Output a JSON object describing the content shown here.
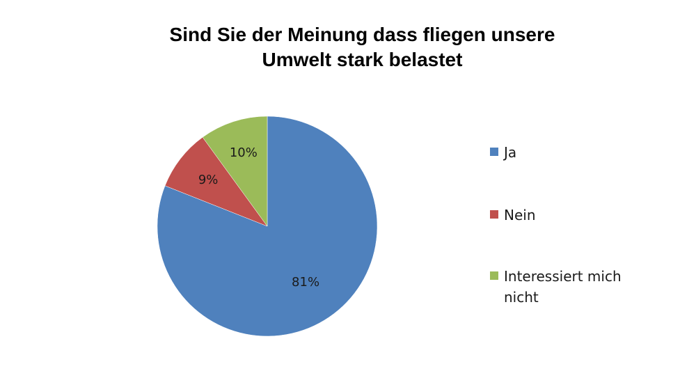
{
  "chart_data": {
    "type": "pie",
    "title_lines": [
      "Sind Sie der Meinung dass fliegen unsere",
      "Umwelt stark belastet"
    ],
    "categories": [
      "Ja",
      "Nein",
      "Interessiert mich nicht"
    ],
    "values": [
      81,
      9,
      10
    ],
    "value_labels": [
      "81%",
      "9%",
      "10%"
    ],
    "colors": [
      "#4F81BD",
      "#C0504D",
      "#9BBB59"
    ],
    "legend_position": "right",
    "start_angle": "12 o'clock, clockwise"
  }
}
